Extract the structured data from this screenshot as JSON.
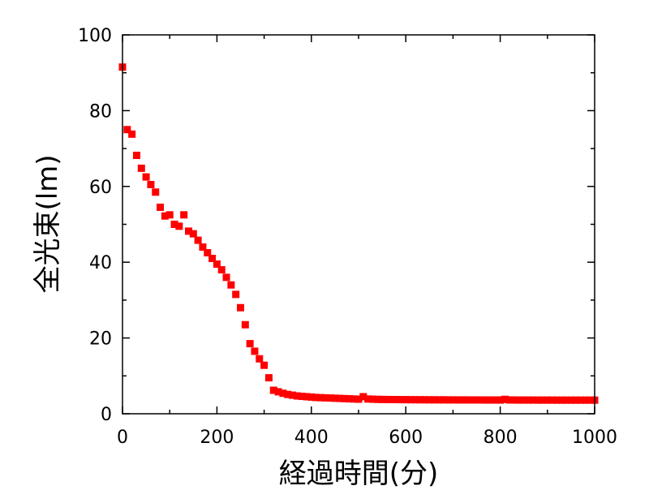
{
  "chart_data": {
    "type": "scatter",
    "title": "",
    "xlabel": "経過時間(分)",
    "ylabel": "全光束(lm)",
    "xlim": [
      0,
      1000
    ],
    "ylim": [
      0,
      100
    ],
    "xticks": [
      "0",
      "200",
      "400",
      "600",
      "800",
      "1000"
    ],
    "yticks": [
      "0",
      "20",
      "40",
      "60",
      "80",
      "100"
    ],
    "grid": false,
    "legend": "none",
    "marker": "square",
    "color": "#ff0000",
    "series": [
      {
        "x": [
          0,
          10,
          20,
          30,
          40,
          50,
          60,
          70,
          80,
          90,
          100,
          110,
          120,
          130,
          140,
          150,
          160,
          170,
          180,
          190,
          200,
          210,
          220,
          230,
          240,
          250,
          260,
          270,
          280,
          290,
          300,
          310,
          320,
          330,
          340,
          350,
          360,
          370,
          380,
          390,
          400,
          410,
          420,
          430,
          440,
          450,
          460,
          470,
          480,
          490,
          500,
          510,
          520,
          530,
          540,
          550,
          560,
          570,
          580,
          590,
          600,
          610,
          620,
          630,
          640,
          650,
          660,
          670,
          680,
          690,
          700,
          710,
          720,
          730,
          740,
          750,
          760,
          770,
          780,
          790,
          800,
          810,
          820,
          830,
          840,
          850,
          860,
          870,
          880,
          890,
          900,
          910,
          920,
          930,
          940,
          950,
          960,
          970,
          980,
          990,
          1000
        ],
        "y": [
          91.5,
          75.0,
          73.8,
          68.2,
          64.8,
          62.5,
          60.5,
          58.5,
          54.5,
          52.2,
          52.5,
          50.0,
          49.5,
          52.5,
          48.2,
          47.5,
          45.8,
          44.0,
          42.5,
          41.0,
          39.5,
          38.0,
          36.0,
          34.0,
          31.5,
          28.0,
          23.5,
          18.5,
          16.5,
          14.5,
          12.8,
          9.5,
          6.2,
          5.8,
          5.4,
          5.1,
          4.9,
          4.7,
          4.6,
          4.5,
          4.4,
          4.3,
          4.25,
          4.2,
          4.15,
          4.1,
          4.05,
          4.0,
          3.95,
          3.9,
          3.85,
          4.5,
          3.9,
          3.85,
          3.8,
          3.78,
          3.76,
          3.75,
          3.74,
          3.73,
          3.72,
          3.71,
          3.7,
          3.7,
          3.69,
          3.68,
          3.68,
          3.67,
          3.67,
          3.66,
          3.66,
          3.65,
          3.65,
          3.65,
          3.64,
          3.64,
          3.64,
          3.63,
          3.63,
          3.63,
          3.62,
          3.8,
          3.65,
          3.63,
          3.62,
          3.62,
          3.62,
          3.62,
          3.61,
          3.61,
          3.61,
          3.61,
          3.6,
          3.6,
          3.6,
          3.6,
          3.6,
          3.6,
          3.6,
          3.6,
          3.6
        ]
      }
    ]
  }
}
